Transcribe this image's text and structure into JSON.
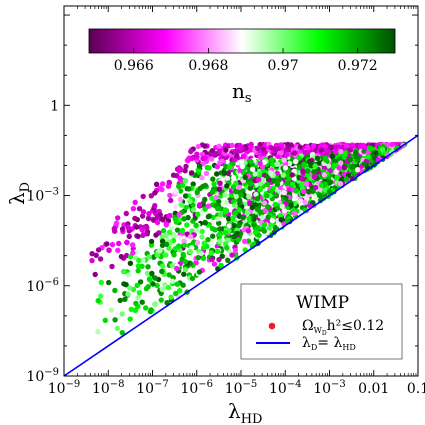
{
  "chart_data": {
    "type": "scatter",
    "xlabel": "λ",
    "xlabel_sub": "HD",
    "ylabel": "λ",
    "ylabel_sub": "D",
    "xscale": "log",
    "yscale": "log",
    "xlim": [
      1e-09,
      0.1
    ],
    "ylim": [
      1e-09,
      2000
    ],
    "grid": false,
    "x_ticks": [
      {
        "value": 1e-09,
        "base": "10",
        "exp": "−9"
      },
      {
        "value": 1e-08,
        "base": "10",
        "exp": "−8"
      },
      {
        "value": 1e-07,
        "base": "10",
        "exp": "−7"
      },
      {
        "value": 1e-06,
        "base": "10",
        "exp": "−6"
      },
      {
        "value": 1e-05,
        "base": "10",
        "exp": "−5"
      },
      {
        "value": 0.0001,
        "base": "10",
        "exp": "−4"
      },
      {
        "value": 0.001,
        "base": "10",
        "exp": "−3"
      },
      {
        "value": 0.01,
        "base": "0.01",
        "exp": ""
      },
      {
        "value": 0.1,
        "base": "0.1",
        "exp": ""
      }
    ],
    "y_ticks": [
      {
        "value": 1e-09,
        "base": "10",
        "exp": "−9"
      },
      {
        "value": 1e-06,
        "base": "10",
        "exp": "−6"
      },
      {
        "value": 0.001,
        "base": "10",
        "exp": "−3"
      },
      {
        "value": 1,
        "base": "1",
        "exp": ""
      }
    ],
    "colorbar": {
      "label": "n",
      "label_sub": "s",
      "range": [
        0.9648,
        0.973
      ],
      "ticks": [
        "0.966",
        "0.968",
        "0.97",
        "0.972"
      ],
      "tick_values": [
        0.966,
        0.968,
        0.97,
        0.972
      ],
      "colors": [
        "#5a0050",
        "#ff00ff",
        "#ffffff",
        "#00ff00",
        "#005000"
      ]
    },
    "legend": {
      "title": "WIMP",
      "placement": "lower-right",
      "scatter_label_main": "Ω",
      "scatter_label_sub": "W",
      "scatter_label_subsub": "D",
      "scatter_label_rest": "h²≤0.12",
      "scatter_marker_color": "#ee1c25",
      "line_label_main": "λ",
      "line_label_sub1": "D",
      "line_label_eq": "= λ",
      "line_label_sub2": "HD"
    },
    "series": [
      {
        "name": "Ω_WD h²≤0.12",
        "kind": "scatter",
        "points_note": "dense point cloud between the line λD=λHD and an upper envelope",
        "envelope_upper": [
          [
            3e-09,
            1e-05
          ],
          [
            1e-08,
            0.0001
          ],
          [
            1e-07,
            0.002
          ],
          [
            1e-06,
            0.05
          ],
          [
            1e-05,
            0.05
          ],
          [
            0.0001,
            0.05
          ],
          [
            0.001,
            0.05
          ],
          [
            0.03,
            0.05
          ]
        ],
        "x_range": [
          4e-09,
          0.05
        ]
      },
      {
        "name": "λD = λHD",
        "kind": "line",
        "color": "#0000ff",
        "x": [
          1e-09,
          0.1
        ],
        "y": [
          1e-09,
          0.1
        ]
      }
    ]
  }
}
